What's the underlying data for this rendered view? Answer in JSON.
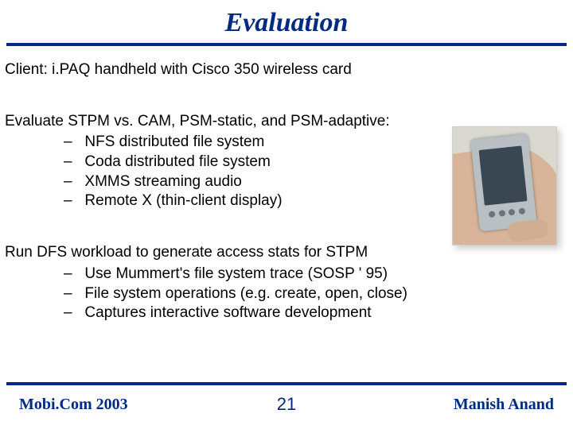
{
  "title": "Evaluation",
  "client_line": "Client: i.PAQ handheld with Cisco 350 wireless card",
  "eval_lead": "Evaluate STPM vs. CAM, PSM-static, and PSM-adaptive:",
  "eval_items": [
    "NFS distributed file system",
    "Coda distributed file system",
    "XMMS streaming audio",
    "Remote X (thin-client display)"
  ],
  "dfs_lead": "Run DFS workload to generate access stats for STPM",
  "dfs_items": [
    "Use Mummert's file system trace (SOSP ' 95)",
    "File system operations (e.g. create, open, close)",
    "Captures interactive software development"
  ],
  "footer": {
    "left": "Mobi.Com 2003",
    "page": "21",
    "right": "Manish Anand"
  },
  "colors": {
    "accent": "#002a82",
    "text": "#000000",
    "bg": "#ffffff"
  }
}
